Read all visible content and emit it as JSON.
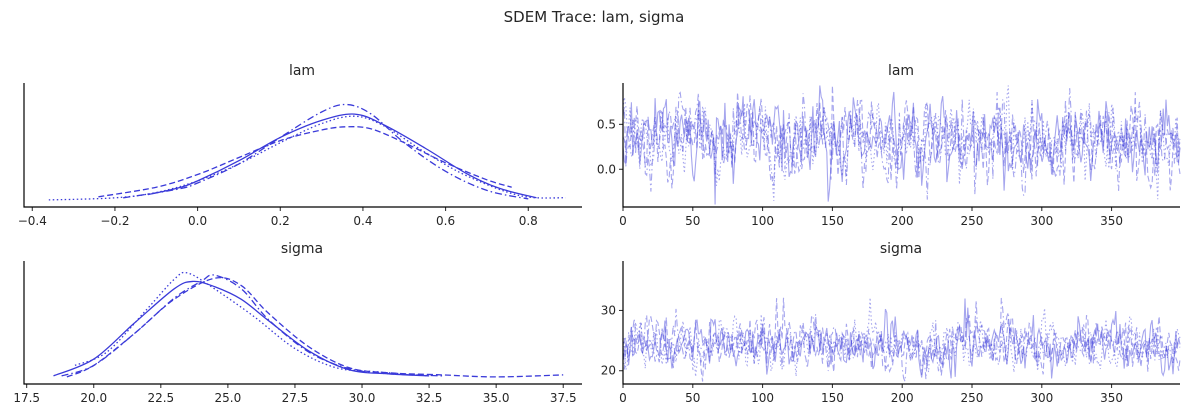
{
  "figure": {
    "title": "SDEM Trace: lam, sigma",
    "color": "#3a3ad9"
  },
  "chart_data": [
    {
      "type": "line",
      "title": "lam",
      "kind": "posterior-density",
      "xlim": [
        -0.42,
        0.93
      ],
      "x_ticks": [
        "−0.4",
        "−0.2",
        "0.0",
        "0.2",
        "0.4",
        "0.6",
        "0.8"
      ],
      "y_ticks": [],
      "series": [
        {
          "style": "solid",
          "x": [
            -0.12,
            -0.05,
            0.0,
            0.1,
            0.2,
            0.3,
            0.38,
            0.45,
            0.55,
            0.65,
            0.73,
            0.82
          ],
          "y": [
            0.06,
            0.12,
            0.19,
            0.38,
            0.6,
            0.76,
            0.82,
            0.72,
            0.5,
            0.26,
            0.12,
            0.03
          ]
        },
        {
          "style": "dashed",
          "x": [
            -0.24,
            -0.1,
            0.0,
            0.1,
            0.2,
            0.3,
            0.36,
            0.42,
            0.5,
            0.6,
            0.7,
            0.76
          ],
          "y": [
            0.04,
            0.13,
            0.25,
            0.41,
            0.57,
            0.67,
            0.7,
            0.68,
            0.55,
            0.36,
            0.2,
            0.13
          ]
        },
        {
          "style": "dotted",
          "x": [
            -0.36,
            -0.2,
            -0.1,
            0.0,
            0.1,
            0.2,
            0.3,
            0.38,
            0.45,
            0.55,
            0.65,
            0.78,
            0.89
          ],
          "y": [
            0.01,
            0.03,
            0.08,
            0.19,
            0.35,
            0.55,
            0.73,
            0.8,
            0.71,
            0.46,
            0.24,
            0.05,
            0.03
          ]
        },
        {
          "style": "dashdot",
          "x": [
            -0.18,
            -0.05,
            0.0,
            0.1,
            0.2,
            0.3,
            0.36,
            0.42,
            0.5,
            0.6,
            0.7,
            0.8
          ],
          "y": [
            0.03,
            0.11,
            0.17,
            0.35,
            0.6,
            0.84,
            0.91,
            0.82,
            0.55,
            0.28,
            0.1,
            0.02
          ]
        }
      ]
    },
    {
      "type": "line",
      "title": "lam",
      "kind": "trace",
      "xlim": [
        0,
        399
      ],
      "ylim": [
        -0.42,
        0.96
      ],
      "x_ticks": [
        "0",
        "50",
        "100",
        "150",
        "200",
        "250",
        "300",
        "350"
      ],
      "y_ticks": [
        "0.0",
        "0.5"
      ],
      "draws": 400,
      "chains": 4,
      "center": 0.33,
      "spread": 0.2
    },
    {
      "type": "line",
      "title": "sigma",
      "kind": "posterior-density",
      "xlim": [
        17.4,
        38.2
      ],
      "x_ticks": [
        "17.5",
        "20.0",
        "22.5",
        "25.0",
        "27.5",
        "30.0",
        "32.5",
        "35.0",
        "37.5"
      ],
      "y_ticks": [],
      "series": [
        {
          "style": "solid",
          "x": [
            18.5,
            20,
            21.5,
            23,
            23.7,
            24.5,
            25.5,
            26.5,
            28,
            29.5,
            31,
            32.5
          ],
          "y": [
            0.02,
            0.18,
            0.52,
            0.85,
            0.92,
            0.87,
            0.75,
            0.55,
            0.26,
            0.08,
            0.04,
            0.02
          ]
        },
        {
          "style": "dashed",
          "x": [
            19,
            20,
            21.5,
            23,
            24.5,
            25.5,
            26.5,
            28,
            29.5,
            31,
            33,
            35,
            37.5
          ],
          "y": [
            0.01,
            0.12,
            0.42,
            0.75,
            0.95,
            0.88,
            0.62,
            0.3,
            0.1,
            0.05,
            0.03,
            0.01,
            0.03
          ]
        },
        {
          "style": "dotted",
          "x": [
            19.3,
            20.5,
            22,
            23,
            23.5,
            24.5,
            26,
            27.5,
            29,
            30.5,
            32.5
          ],
          "y": [
            0.12,
            0.25,
            0.66,
            0.94,
            1.0,
            0.85,
            0.58,
            0.28,
            0.1,
            0.06,
            0.02
          ]
        },
        {
          "style": "dashdot",
          "x": [
            18.8,
            20,
            21.5,
            23,
            24,
            24.5,
            25.5,
            26.5,
            28,
            29.5,
            31,
            33
          ],
          "y": [
            0.02,
            0.12,
            0.42,
            0.76,
            0.92,
            0.98,
            0.85,
            0.56,
            0.25,
            0.09,
            0.04,
            0.02
          ]
        }
      ]
    },
    {
      "type": "line",
      "title": "sigma",
      "kind": "trace",
      "xlim": [
        0,
        399
      ],
      "ylim": [
        17.8,
        38.2
      ],
      "x_ticks": [
        "0",
        "50",
        "100",
        "150",
        "200",
        "250",
        "300",
        "350"
      ],
      "y_ticks": [
        "20",
        "30"
      ],
      "draws": 400,
      "chains": 4,
      "center": 24.2,
      "spread": 1.9
    }
  ]
}
